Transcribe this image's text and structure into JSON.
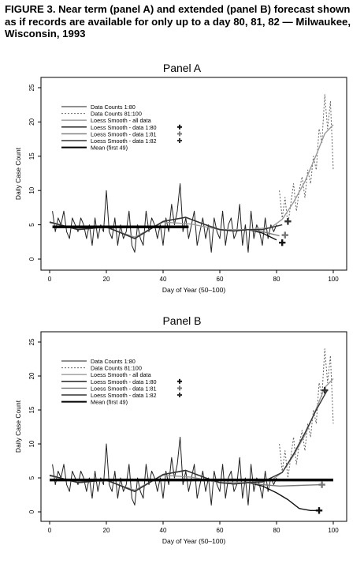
{
  "figure": {
    "title": "FIGURE 3. Near term (panel A) and extended (panel B) forecast shown as if records are available for only up to a day 80, 81, 82 — Milwaukee, Wisconsin, 1993"
  },
  "legend_labels": [
    "Data Counts 1:80",
    "Data Counts 81:100",
    "Loess Smooth - all data",
    "Loess Smooth - data 1:80",
    "Loess Smooth - data 1:81",
    "Loess Smooth - data 1:82",
    "Mean (first 49)"
  ],
  "colors": {
    "data_1_80": "#222222",
    "data_81_100": "#666666",
    "smooth_all": "#999999",
    "smooth_80": "#111111",
    "smooth_81": "#777777",
    "smooth_82": "#333333",
    "mean": "#000000"
  },
  "chart_data": [
    {
      "type": "line",
      "panel_title": "Panel A",
      "xlabel": "Day of Year (50–100)",
      "ylabel": "Daily Case Count",
      "xlim": [
        0,
        100
      ],
      "ylim": [
        0,
        25
      ],
      "xticks": [
        "0",
        "20",
        "40",
        "60",
        "80",
        "100"
      ],
      "yticks": [
        "0",
        "5",
        "10",
        "15",
        "20",
        "25"
      ],
      "legend_position": "top-left",
      "grid": false,
      "series": [
        {
          "name": "Data Counts 1:80",
          "x": [
            1,
            2,
            3,
            4,
            5,
            6,
            7,
            8,
            9,
            10,
            11,
            12,
            13,
            14,
            15,
            16,
            17,
            18,
            19,
            20,
            21,
            22,
            23,
            24,
            25,
            26,
            27,
            28,
            29,
            30,
            31,
            32,
            33,
            34,
            35,
            36,
            37,
            38,
            39,
            40,
            41,
            42,
            43,
            44,
            45,
            46,
            47,
            48,
            49,
            50,
            51,
            52,
            53,
            54,
            55,
            56,
            57,
            58,
            59,
            60,
            61,
            62,
            63,
            64,
            65,
            66,
            67,
            68,
            69,
            70,
            71,
            72,
            73,
            74,
            75,
            76,
            77,
            78,
            79,
            80
          ],
          "y": [
            7,
            4,
            6,
            5,
            7,
            4,
            3,
            6,
            5,
            4,
            6,
            5,
            3,
            5,
            2,
            6,
            3,
            5,
            4,
            10,
            4,
            3,
            6,
            2,
            5,
            3,
            4,
            7,
            2,
            1,
            5,
            3,
            2,
            7,
            4,
            6,
            5,
            3,
            5,
            2,
            6,
            4,
            8,
            5,
            7,
            11,
            4,
            6,
            3,
            5,
            7,
            2,
            4,
            6,
            3,
            5,
            1,
            6,
            4,
            3,
            7,
            2,
            5,
            6,
            3,
            4,
            8,
            2,
            5,
            1,
            7,
            3,
            5,
            4,
            2,
            6,
            3,
            5,
            4,
            5
          ]
        },
        {
          "name": "Data Counts 81:100",
          "x": [
            81,
            82,
            83,
            84,
            85,
            86,
            87,
            88,
            89,
            90,
            91,
            92,
            93,
            94,
            95,
            96,
            97,
            98,
            99,
            100
          ],
          "y": [
            10,
            6,
            9,
            5,
            8,
            11,
            7,
            10,
            12,
            9,
            13,
            11,
            15,
            13,
            19,
            17,
            24,
            19,
            23,
            13
          ]
        },
        {
          "name": "Loess Smooth - all data",
          "x": [
            0,
            10,
            20,
            30,
            40,
            50,
            60,
            70,
            78,
            82,
            86,
            90,
            94,
            97,
            100
          ],
          "y": [
            5.3,
            4.4,
            4.6,
            3.2,
            5.4,
            5.1,
            4.3,
            4.3,
            4.6,
            5.8,
            8.3,
            11.3,
            15.2,
            18.3,
            19.6
          ]
        },
        {
          "name": "Loess Smooth - data 1:80",
          "x": [
            0,
            10,
            20,
            30,
            40,
            48,
            55,
            60,
            65,
            70,
            75,
            80
          ],
          "y": [
            5.4,
            4.3,
            4.7,
            3.0,
            5.5,
            6.1,
            5.0,
            4.3,
            4.1,
            4.3,
            3.8,
            2.8
          ]
        },
        {
          "name": "Loess Smooth - data 1:81",
          "x": [
            0,
            10,
            20,
            30,
            40,
            48,
            55,
            60,
            65,
            70,
            75,
            81
          ],
          "y": [
            5.4,
            4.3,
            4.7,
            3.0,
            5.5,
            6.1,
            5.0,
            4.3,
            4.1,
            4.3,
            4.0,
            3.4
          ]
        },
        {
          "name": "Loess Smooth - data 1:82",
          "x": [
            0,
            10,
            20,
            30,
            40,
            48,
            55,
            60,
            65,
            70,
            75,
            82
          ],
          "y": [
            5.4,
            4.3,
            4.7,
            3.0,
            5.5,
            6.1,
            5.0,
            4.3,
            4.1,
            4.3,
            4.3,
            5.0
          ]
        },
        {
          "name": "Mean (first 49)",
          "x": [
            1,
            49
          ],
          "y": [
            4.7,
            4.7
          ]
        }
      ],
      "forecast_points": [
        {
          "x": 82,
          "y": 2.4,
          "series": "Loess Smooth - data 1:80"
        },
        {
          "x": 83,
          "y": 3.5,
          "series": "Loess Smooth - data 1:81"
        },
        {
          "x": 84,
          "y": 5.5,
          "series": "Loess Smooth - data 1:82"
        }
      ]
    },
    {
      "type": "line",
      "panel_title": "Panel B",
      "xlabel": "Day of Year (50–100)",
      "ylabel": "Daily Case Count",
      "xlim": [
        0,
        100
      ],
      "ylim": [
        0,
        25
      ],
      "xticks": [
        "0",
        "20",
        "40",
        "60",
        "80",
        "100"
      ],
      "yticks": [
        "0",
        "5",
        "10",
        "15",
        "20",
        "25"
      ],
      "legend_position": "top-left",
      "grid": false,
      "series": [
        {
          "name": "Data Counts 1:80",
          "x": [
            1,
            2,
            3,
            4,
            5,
            6,
            7,
            8,
            9,
            10,
            11,
            12,
            13,
            14,
            15,
            16,
            17,
            18,
            19,
            20,
            21,
            22,
            23,
            24,
            25,
            26,
            27,
            28,
            29,
            30,
            31,
            32,
            33,
            34,
            35,
            36,
            37,
            38,
            39,
            40,
            41,
            42,
            43,
            44,
            45,
            46,
            47,
            48,
            49,
            50,
            51,
            52,
            53,
            54,
            55,
            56,
            57,
            58,
            59,
            60,
            61,
            62,
            63,
            64,
            65,
            66,
            67,
            68,
            69,
            70,
            71,
            72,
            73,
            74,
            75,
            76,
            77,
            78,
            79,
            80
          ],
          "y": [
            7,
            4,
            6,
            5,
            7,
            4,
            3,
            6,
            5,
            4,
            6,
            5,
            3,
            5,
            2,
            6,
            3,
            5,
            4,
            10,
            4,
            3,
            6,
            2,
            5,
            3,
            4,
            7,
            2,
            1,
            5,
            3,
            2,
            7,
            4,
            6,
            5,
            3,
            5,
            2,
            6,
            4,
            8,
            5,
            7,
            11,
            4,
            6,
            3,
            5,
            7,
            2,
            4,
            6,
            3,
            5,
            1,
            6,
            4,
            3,
            7,
            2,
            5,
            6,
            3,
            4,
            8,
            2,
            5,
            1,
            7,
            3,
            5,
            4,
            2,
            6,
            3,
            5,
            4,
            5
          ]
        },
        {
          "name": "Data Counts 81:100",
          "x": [
            81,
            82,
            83,
            84,
            85,
            86,
            87,
            88,
            89,
            90,
            91,
            92,
            93,
            94,
            95,
            96,
            97,
            98,
            99,
            100
          ],
          "y": [
            10,
            6,
            9,
            5,
            8,
            11,
            7,
            10,
            12,
            9,
            13,
            11,
            15,
            13,
            19,
            17,
            24,
            19,
            23,
            13
          ]
        },
        {
          "name": "Loess Smooth - all data",
          "x": [
            0,
            10,
            20,
            30,
            40,
            50,
            60,
            70,
            78,
            82,
            86,
            90,
            94,
            97,
            100
          ],
          "y": [
            5.3,
            4.4,
            4.6,
            3.2,
            5.4,
            5.1,
            4.3,
            4.3,
            4.6,
            5.8,
            8.3,
            11.3,
            15.2,
            18.3,
            19.6
          ]
        },
        {
          "name": "Loess Smooth - data 1:80",
          "x": [
            0,
            10,
            20,
            30,
            40,
            48,
            55,
            60,
            65,
            70,
            75,
            80,
            84,
            88,
            92,
            96
          ],
          "y": [
            5.4,
            4.3,
            4.7,
            3.0,
            5.5,
            6.1,
            5.0,
            4.3,
            4.1,
            4.3,
            3.8,
            2.8,
            1.8,
            0.5,
            0.2,
            0.2
          ]
        },
        {
          "name": "Loess Smooth - data 1:81",
          "x": [
            0,
            10,
            20,
            30,
            40,
            48,
            55,
            60,
            65,
            70,
            75,
            81,
            88,
            96
          ],
          "y": [
            5.4,
            4.3,
            4.7,
            3.0,
            5.5,
            6.1,
            5.0,
            4.3,
            4.1,
            4.3,
            4.0,
            3.8,
            3.9,
            4.0
          ]
        },
        {
          "name": "Loess Smooth - data 1:82",
          "x": [
            0,
            10,
            20,
            30,
            40,
            48,
            55,
            60,
            65,
            70,
            75,
            82,
            86,
            90,
            94,
            98
          ],
          "y": [
            5.4,
            4.3,
            4.7,
            3.0,
            5.5,
            6.1,
            5.0,
            4.3,
            4.1,
            4.3,
            4.4,
            5.8,
            8.5,
            11.6,
            15.0,
            18.0
          ]
        },
        {
          "name": "Mean (first 49)",
          "x": [
            0,
            100
          ],
          "y": [
            4.7,
            4.7
          ]
        }
      ],
      "forecast_points": [
        {
          "x": 95,
          "y": 0.2,
          "series": "Loess Smooth - data 1:80"
        },
        {
          "x": 96,
          "y": 4.0,
          "series": "Loess Smooth - data 1:81"
        },
        {
          "x": 97,
          "y": 17.9,
          "series": "Loess Smooth - data 1:82"
        }
      ]
    }
  ]
}
